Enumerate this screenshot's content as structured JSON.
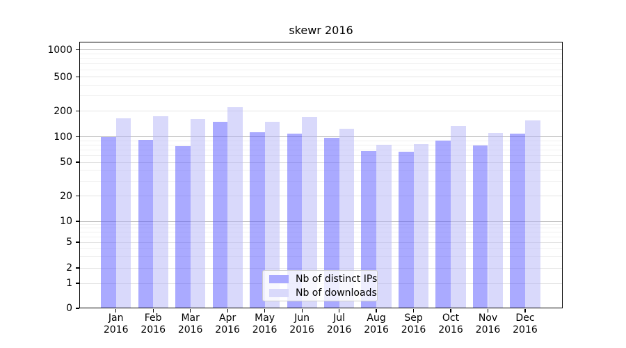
{
  "figure": {
    "background_color": "#ffffff",
    "text_color": "#000000"
  },
  "chart_data": {
    "type": "bar",
    "title": "skewr 2016",
    "categories": [
      "Jan 2016",
      "Feb 2016",
      "Mar 2016",
      "Apr 2016",
      "May 2016",
      "Jun 2016",
      "Jul 2016",
      "Aug 2016",
      "Sep 2016",
      "Oct 2016",
      "Nov 2016",
      "Dec 2016"
    ],
    "x_tick_month": [
      "Jan",
      "Feb",
      "Mar",
      "Apr",
      "May",
      "Jun",
      "Jul",
      "Aug",
      "Sep",
      "Oct",
      "Nov",
      "Dec"
    ],
    "x_tick_year": "2016",
    "series": [
      {
        "name": "Nb of distinct IPs",
        "color": "#aaaaff",
        "values": [
          100,
          92,
          78,
          151,
          112,
          109,
          97,
          68,
          66,
          90,
          79,
          108
        ]
      },
      {
        "name": "Nb of downloads",
        "color": "#d9d9fb",
        "values": [
          164,
          175,
          161,
          220,
          151,
          171,
          124,
          80,
          82,
          134,
          111,
          154
        ]
      }
    ],
    "xlabel": "",
    "ylabel": "",
    "y_scale": "symlog",
    "y_tick_values": [
      0,
      1,
      2,
      5,
      10,
      20,
      50,
      100,
      200,
      500,
      1000
    ],
    "y_major_gridlines": [
      10,
      100,
      1000
    ],
    "y_minor_gridlines": [
      1,
      2,
      5,
      20,
      50,
      200,
      500,
      3,
      4,
      6,
      7,
      8,
      9,
      30,
      40,
      60,
      70,
      80,
      90,
      300,
      400,
      600,
      700,
      800,
      900
    ],
    "ylim": [
      0,
      1250
    ],
    "grid": true,
    "legend_position": "lower-center",
    "grid_major_color": "#b3b3b3",
    "grid_minor_color": "#e3e3e3",
    "grid_micro_color": "#f0f0f0"
  }
}
